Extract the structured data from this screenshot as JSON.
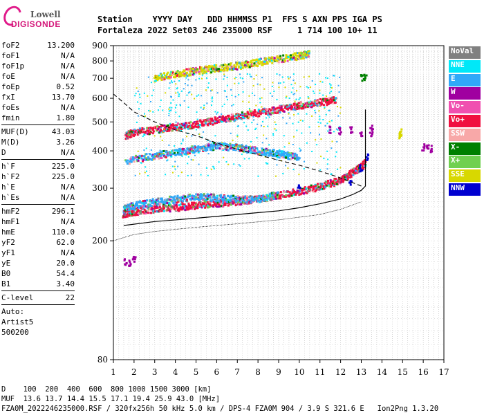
{
  "logo": {
    "line1": "Lowell",
    "line2": "DIGISONDE"
  },
  "header": {
    "line1": "Station    YYYY DAY   DDD HHMMSS P1  FFS S AXN PPS IGA PS",
    "line2": "Fortaleza 2022 Set03 246 235000 RSF     1 714 100 10+ 11"
  },
  "params_groups": [
    [
      [
        "foF2",
        "13.200"
      ],
      [
        "foF1",
        "N/A"
      ],
      [
        "foF1p",
        "N/A"
      ],
      [
        "foE",
        "N/A"
      ],
      [
        "foEp",
        "0.52"
      ],
      [
        "fxI",
        "13.70"
      ],
      [
        "foEs",
        "N/A"
      ],
      [
        "fmin",
        "1.80"
      ]
    ],
    [
      [
        "MUF(D)",
        "43.03"
      ],
      [
        "M(D)",
        "3.26"
      ],
      [
        "D",
        "N/A"
      ]
    ],
    [
      [
        "h`F",
        "225.0"
      ],
      [
        "h`F2",
        "225.0"
      ],
      [
        "h`E",
        "N/A"
      ],
      [
        "h`Es",
        "N/A"
      ]
    ],
    [
      [
        "hmF2",
        "296.1"
      ],
      [
        "hmF1",
        "N/A"
      ],
      [
        "hmE",
        "110.0"
      ],
      [
        "yF2",
        "62.0"
      ],
      [
        "yF1",
        "N/A"
      ],
      [
        "yE",
        "20.0"
      ],
      [
        "B0",
        "54.4"
      ],
      [
        "B1",
        "3.40"
      ]
    ],
    [
      [
        "C-level",
        "22"
      ]
    ]
  ],
  "autoscale": {
    "line1": "Auto:",
    "line2": "Artist5",
    "line3": "500200"
  },
  "legend": [
    {
      "label": "NoVal",
      "color": "#808080"
    },
    {
      "label": "NNE",
      "color": "#00e8f8"
    },
    {
      "label": "E",
      "color": "#30a8f8"
    },
    {
      "label": "W",
      "color": "#a000a0"
    },
    {
      "label": "Vo-",
      "color": "#f050b0"
    },
    {
      "label": "Vo+",
      "color": "#f01040"
    },
    {
      "label": "SSW",
      "color": "#f8a8a8"
    },
    {
      "label": "X-",
      "color": "#008000"
    },
    {
      "label": "X+",
      "color": "#70d050"
    },
    {
      "label": "SSE",
      "color": "#d8d800"
    },
    {
      "label": "NNW",
      "color": "#0000d0"
    }
  ],
  "footer": {
    "line1": "D    100  200  400  600  800 1000 1500 3000 [km]",
    "line2": "MUF  13.6 13.7 14.4 15.5 17.1 19.4 25.9 43.0 [MHz]",
    "line3": "FZA0M_2022246235000.RSF / 320fx256h 50 kHz 5.0 km / DPS-4 FZA0M 904 / 3.9 S 321.6 E   Ion2Png 1.3.20"
  },
  "chart_data": {
    "type": "scatter",
    "xlim": [
      1,
      17
    ],
    "ylim": [
      80,
      900
    ],
    "x_ticks": [
      1,
      2,
      3,
      4,
      5,
      6,
      7,
      8,
      9,
      10,
      11,
      12,
      13,
      14,
      15,
      16,
      17
    ],
    "y_ticks": [
      80,
      200,
      300,
      400,
      500,
      600,
      700,
      800,
      900
    ],
    "xlabel": "",
    "ylabel": "",
    "grid": true,
    "y_scale": "log",
    "traces": [
      {
        "color_key": "Vo+",
        "points": [
          [
            1.5,
            245
          ],
          [
            2,
            250
          ],
          [
            3,
            255
          ],
          [
            4,
            258
          ],
          [
            5,
            262
          ],
          [
            6,
            266
          ],
          [
            7,
            270
          ],
          [
            8,
            276
          ],
          [
            9,
            283
          ],
          [
            10,
            292
          ],
          [
            11,
            303
          ],
          [
            12,
            318
          ],
          [
            12.5,
            335
          ],
          [
            13,
            352
          ],
          [
            13.2,
            365
          ]
        ]
      },
      {
        "color_key": "E",
        "points": [
          [
            1.5,
            255
          ],
          [
            2,
            262
          ],
          [
            3,
            270
          ],
          [
            4,
            275
          ],
          [
            5,
            280
          ],
          [
            6,
            278
          ],
          [
            7,
            275
          ],
          [
            8,
            275
          ],
          [
            9,
            285
          ]
        ]
      },
      {
        "color_key": "Vo+",
        "points": [
          [
            1.6,
            450
          ],
          [
            2,
            460
          ],
          [
            3,
            470
          ],
          [
            4,
            480
          ],
          [
            5,
            490
          ],
          [
            6,
            505
          ],
          [
            7,
            520
          ],
          [
            8,
            535
          ],
          [
            9,
            550
          ],
          [
            10,
            565
          ],
          [
            11,
            580
          ],
          [
            11.8,
            592
          ]
        ]
      },
      {
        "color_key": "SSE",
        "points": [
          [
            3,
            700
          ],
          [
            4,
            720
          ],
          [
            5,
            740
          ],
          [
            6,
            755
          ],
          [
            7,
            770
          ],
          [
            8,
            790
          ],
          [
            9,
            810
          ],
          [
            10,
            830
          ],
          [
            10.5,
            845
          ]
        ]
      },
      {
        "color_key": "E",
        "points": [
          [
            1.6,
            370
          ],
          [
            3,
            385
          ],
          [
            4,
            395
          ],
          [
            5,
            405
          ],
          [
            6,
            415
          ],
          [
            7,
            410
          ],
          [
            8,
            400
          ],
          [
            9,
            390
          ],
          [
            10,
            380
          ]
        ]
      }
    ],
    "profile": {
      "points": [
        [
          1.5,
          225
        ],
        [
          3,
          232
        ],
        [
          5,
          238
        ],
        [
          7,
          245
        ],
        [
          9,
          252
        ],
        [
          10,
          258
        ],
        [
          11,
          266
        ],
        [
          12,
          276
        ],
        [
          12.6,
          286
        ],
        [
          13,
          295
        ],
        [
          13.2,
          305
        ],
        [
          13.2,
          330
        ],
        [
          13.2,
          380
        ],
        [
          13.2,
          450
        ],
        [
          13.2,
          550
        ]
      ]
    },
    "mufcurve": {
      "points": [
        [
          1,
          620
        ],
        [
          1.5,
          580
        ],
        [
          2,
          540
        ],
        [
          3,
          500
        ],
        [
          4,
          470
        ],
        [
          5,
          450
        ],
        [
          6,
          425
        ],
        [
          7,
          405
        ],
        [
          8,
          388
        ],
        [
          9,
          372
        ],
        [
          10,
          358
        ],
        [
          11,
          342
        ],
        [
          12,
          325
        ],
        [
          13,
          305
        ]
      ]
    },
    "lower_curve": {
      "points": [
        [
          1,
          200
        ],
        [
          1.5,
          205
        ],
        [
          2,
          210
        ],
        [
          3,
          215
        ],
        [
          5,
          222
        ],
        [
          7,
          228
        ],
        [
          9,
          235
        ],
        [
          11,
          245
        ],
        [
          12,
          255
        ],
        [
          13,
          270
        ]
      ]
    },
    "clusters": [
      {
        "color_key": "W",
        "points": [
          [
            11.5,
            470
          ],
          [
            12,
            465
          ],
          [
            12.5,
            470
          ],
          [
            13,
            460
          ],
          [
            13.5,
            455
          ],
          [
            13.5,
            480
          ]
        ]
      },
      {
        "color_key": "W",
        "points": [
          [
            16,
            410
          ],
          [
            16.2,
            408
          ],
          [
            16.4,
            405
          ]
        ]
      },
      {
        "color_key": "SSE",
        "points": [
          [
            14.9,
            450
          ],
          [
            14.9,
            460
          ]
        ]
      },
      {
        "color_key": "W",
        "points": [
          [
            1.6,
            170
          ],
          [
            1.8,
            168
          ],
          [
            2,
            172
          ]
        ]
      },
      {
        "color_key": "X-",
        "points": [
          [
            13,
            700
          ],
          [
            13.2,
            702
          ]
        ]
      },
      {
        "color_key": "NNW",
        "points": [
          [
            10,
            305
          ],
          [
            12.5,
            310
          ],
          [
            13,
            350
          ],
          [
            13.3,
            380
          ]
        ]
      }
    ]
  }
}
